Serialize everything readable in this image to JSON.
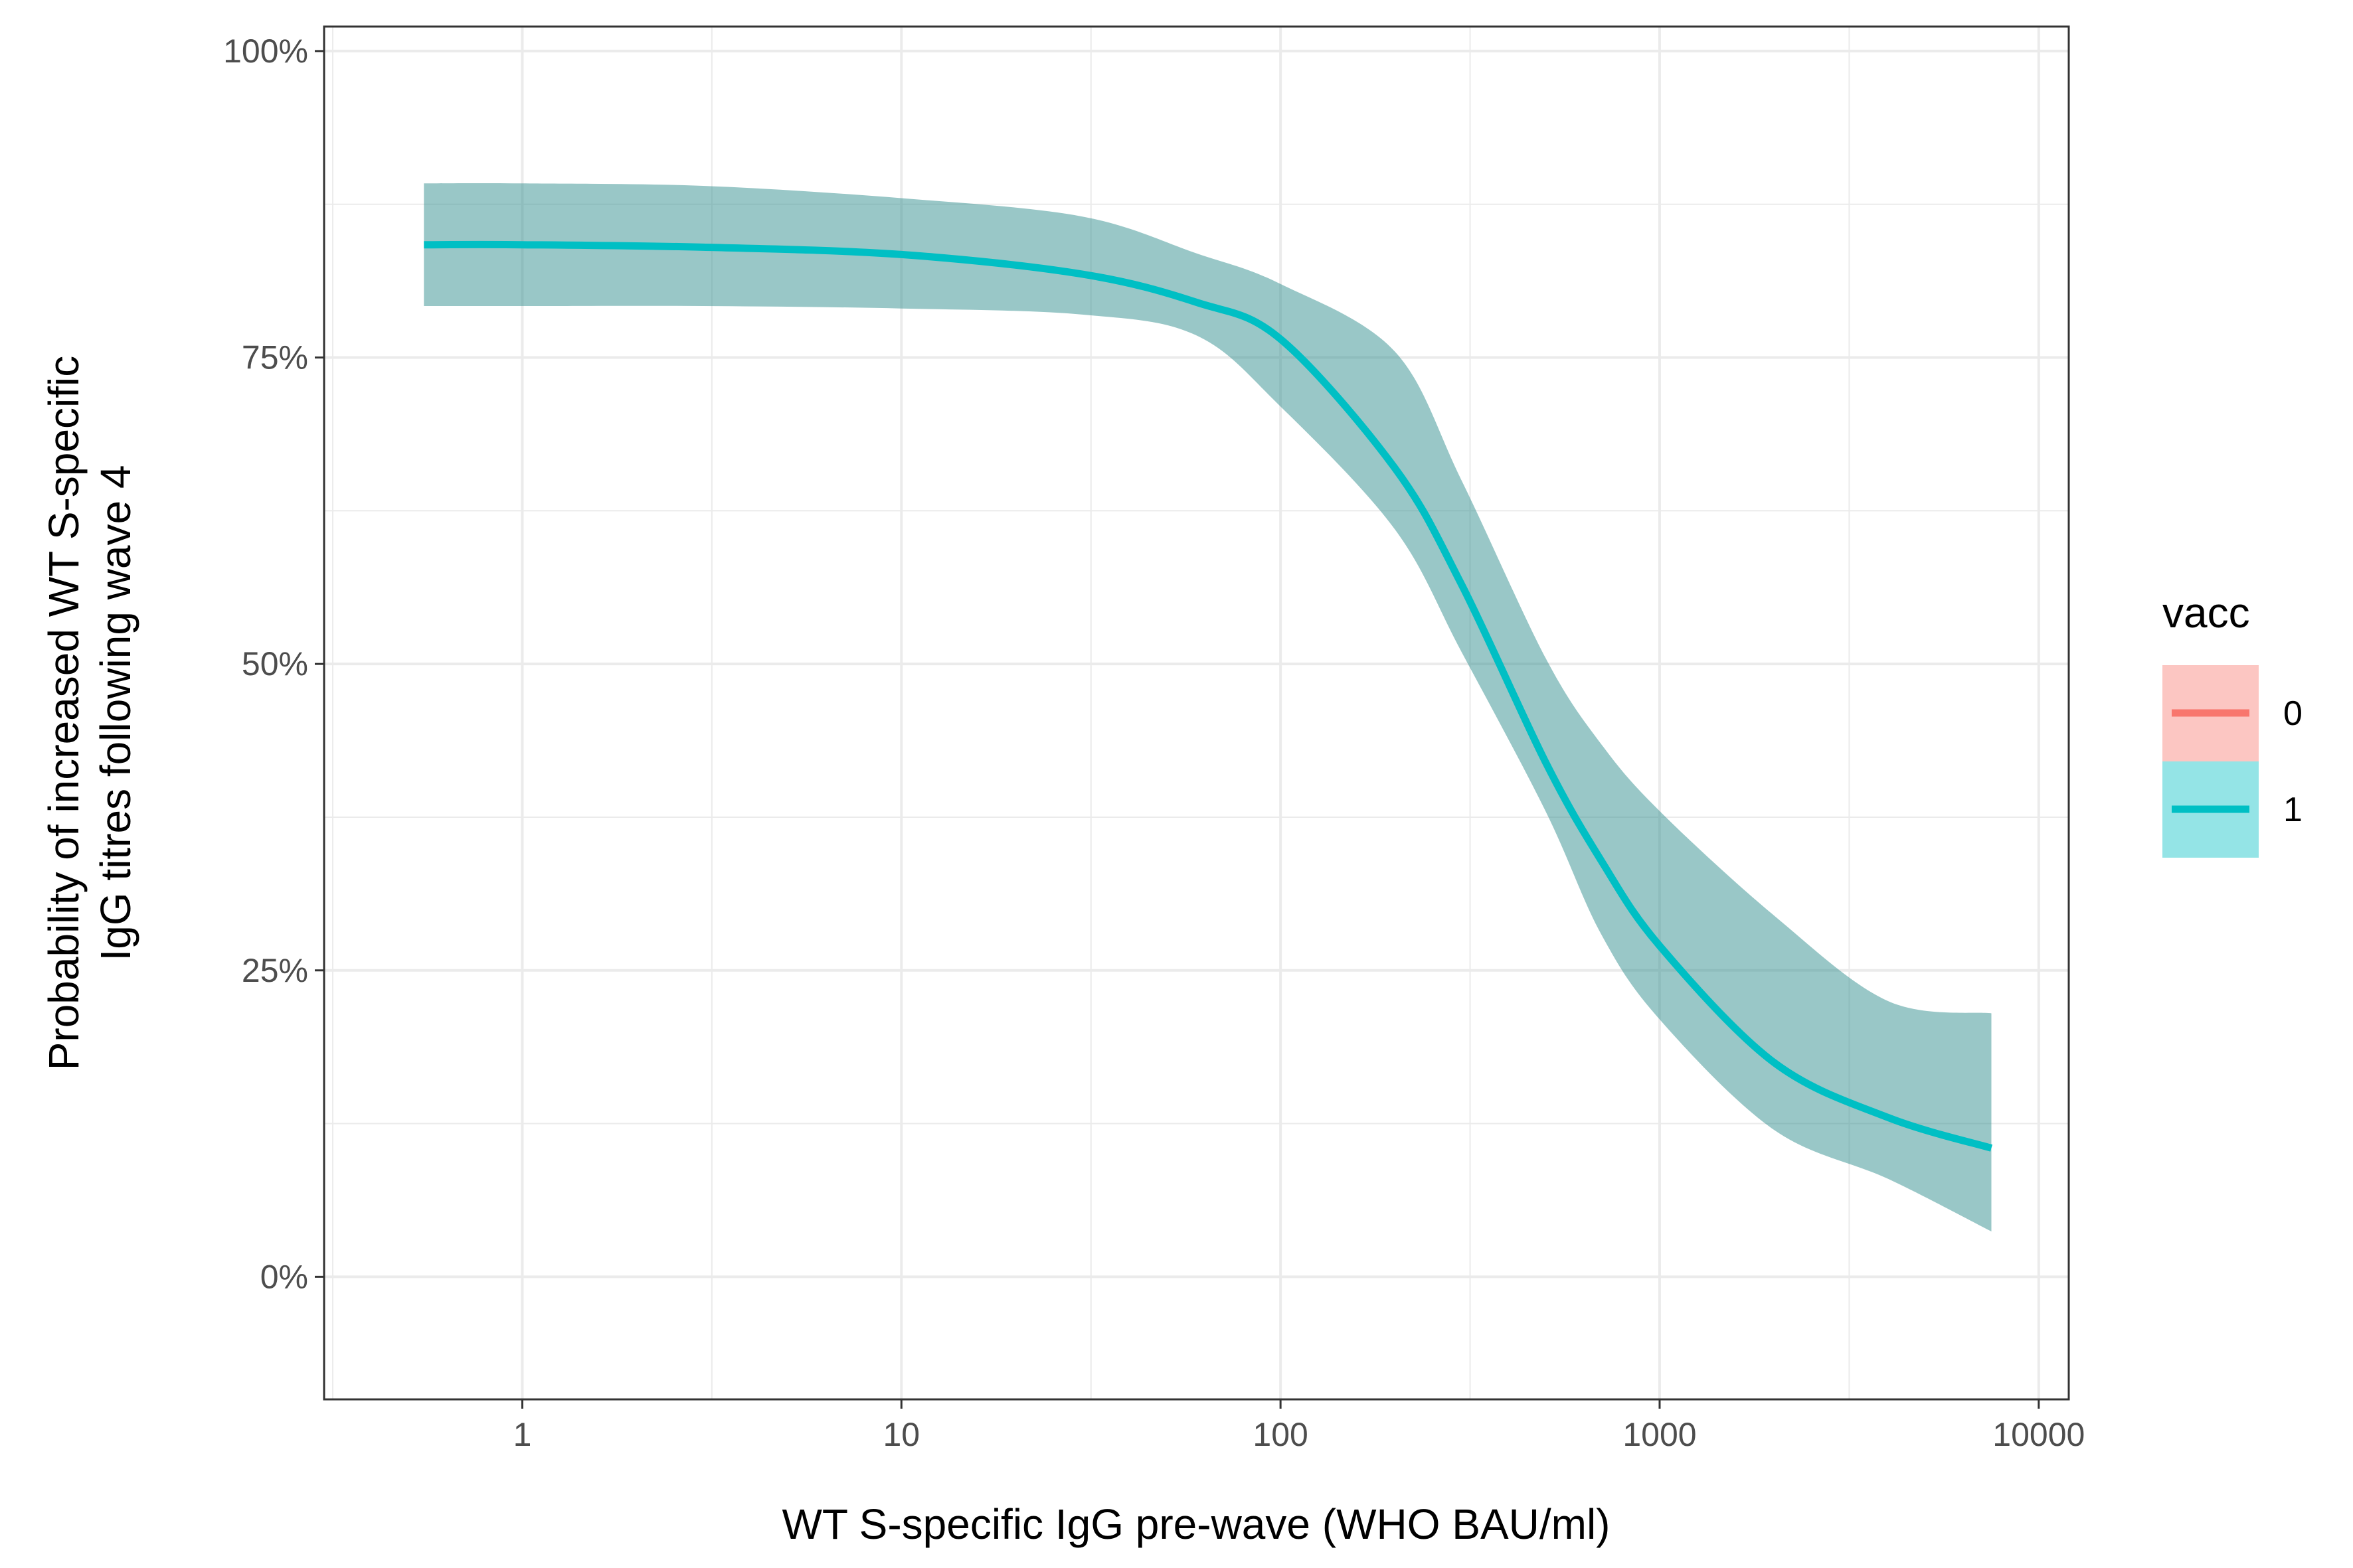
{
  "chart_data": {
    "type": "line",
    "xlabel": "WT S-specific IgG pre-wave (WHO BAU/ml)",
    "ylabel": "Probability of increased WT S-specific IgG titres following wave 4",
    "ylabel_lines": [
      "Probability of increased WT S-specific",
      "IgG titres following wave 4"
    ],
    "x_scale": "log10",
    "xlim": [
      0.3,
      12000
    ],
    "ylim": [
      -0.1,
      1.02
    ],
    "x_ticks": [
      1,
      10,
      100,
      1000,
      10000
    ],
    "x_tick_labels": [
      "1",
      "10",
      "100",
      "1000",
      "10000"
    ],
    "y_ticks": [
      0,
      0.25,
      0.5,
      0.75,
      1.0
    ],
    "y_tick_labels": [
      "0%",
      "25%",
      "50%",
      "75%",
      "100%"
    ],
    "grid": true,
    "legend": {
      "title": "vacc",
      "position": "right",
      "entries": [
        {
          "label": "0",
          "color": "#F8766D",
          "fill": "#F8766D"
        },
        {
          "label": "1",
          "color": "#00BFC4",
          "fill": "#00BFC4"
        }
      ]
    },
    "series": [
      {
        "name": "1",
        "color": "#00BFC4",
        "band_color": "#3B9494",
        "x": [
          0.55,
          1,
          3,
          10,
          30,
          60,
          100,
          200,
          300,
          500,
          700,
          1000,
          2000,
          4000,
          7500
        ],
        "y": [
          0.842,
          0.842,
          0.84,
          0.834,
          0.818,
          0.795,
          0.765,
          0.66,
          0.565,
          0.42,
          0.34,
          0.27,
          0.175,
          0.13,
          0.105
        ],
        "lower": [
          0.792,
          0.792,
          0.792,
          0.79,
          0.785,
          0.768,
          0.71,
          0.61,
          0.51,
          0.38,
          0.28,
          0.21,
          0.12,
          0.08,
          0.037
        ],
        "upper": [
          0.892,
          0.892,
          0.89,
          0.88,
          0.865,
          0.835,
          0.81,
          0.755,
          0.65,
          0.505,
          0.435,
          0.38,
          0.295,
          0.225,
          0.215
        ]
      }
    ]
  }
}
